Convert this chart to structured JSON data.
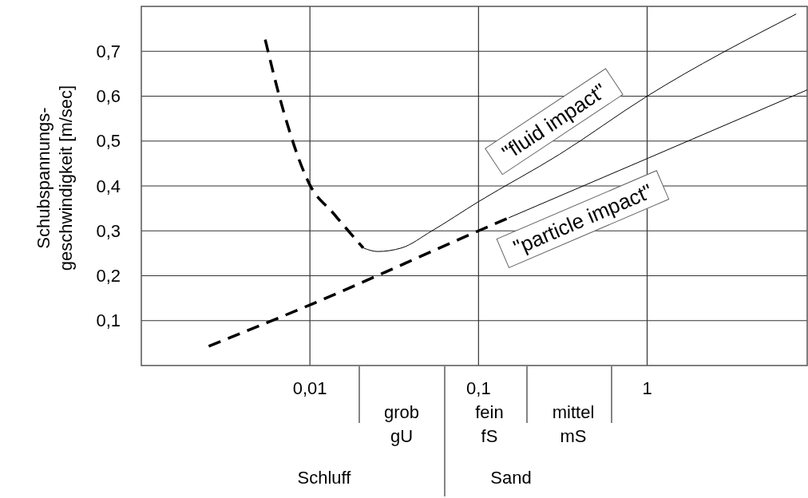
{
  "chart_data": {
    "type": "line",
    "ylabel": "Schubspannungs-\ngeschwindigkeit [m/sec]",
    "log": "x",
    "grid": true,
    "marker": "none",
    "xlim": [
      0.001,
      8.9
    ],
    "ylim": [
      0,
      0.8
    ],
    "xticks": [
      {
        "value": 0.01,
        "label": "0,01"
      },
      {
        "value": 0.1,
        "label": "0,1"
      },
      1
    ],
    "yticks": [
      {
        "value": 0.1,
        "label": "0,1"
      },
      {
        "value": 0.2,
        "label": "0,2"
      },
      {
        "value": 0.3,
        "label": "0,3"
      },
      {
        "value": 0.4,
        "label": "0,4"
      },
      {
        "value": 0.5,
        "label": "0,5"
      },
      {
        "value": 0.6,
        "label": "0,6"
      },
      {
        "value": 0.7,
        "label": "0,7"
      }
    ],
    "series": [
      {
        "color": "#000000",
        "line_style": "dashed",
        "x": [
          0.00543,
          0.00698,
          0.01,
          0.0137,
          0.0207
        ],
        "values": [
          0.726,
          0.566,
          0.402,
          0.34,
          0.262
        ]
      },
      {
        "name": "\"fluid impact\"",
        "color": "#000000",
        "line_style": "solid",
        "x": [
          0.0207,
          0.0252,
          0.035,
          0.0524,
          0.1,
          0.301,
          1,
          7.66
        ],
        "values": [
          0.262,
          0.254,
          0.262,
          0.299,
          0.365,
          0.47,
          0.6,
          0.783
        ]
      },
      {
        "color": "#000000",
        "line_style": "dashed",
        "x": [
          0.00251,
          0.01,
          0.1,
          0.151
        ],
        "values": [
          0.043,
          0.135,
          0.3,
          0.329
        ]
      },
      {
        "name": "\"particle impact\"",
        "color": "#000000",
        "line_style": "solid",
        "x": [
          0.151,
          1,
          8.9
        ],
        "values": [
          0.329,
          0.461,
          0.614
        ]
      }
    ],
    "annotations": [
      "grob\ngU",
      "fein\nfS",
      "mittel\nmS",
      "Schluff",
      "Sand"
    ]
  }
}
